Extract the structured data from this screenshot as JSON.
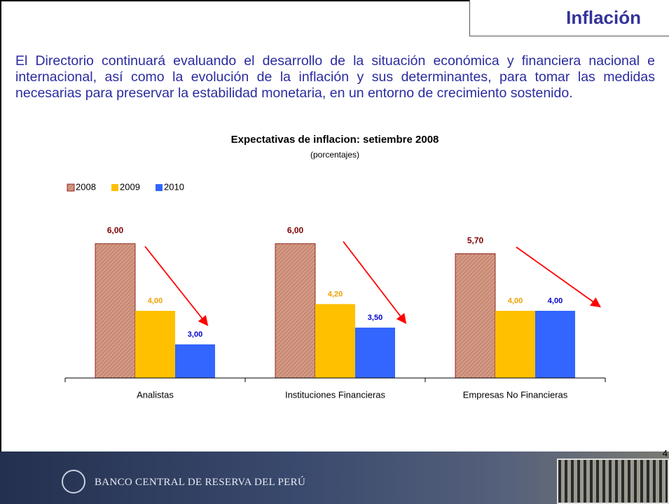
{
  "header": {
    "title": "Inflación"
  },
  "paragraph": "El Directorio continuará evaluando el desarrollo de la situación económica y financiera nacional e internacional, así como la evolución de la inflación y sus determinantes, para tomar las medidas necesarias para preservar la estabilidad monetaria, en un entorno de crecimiento sostenido.",
  "chart_data": {
    "type": "bar",
    "title": "Expectativas de inflacion: setiembre 2008",
    "subtitle": "(porcentajes)",
    "categories": [
      "Analistas",
      "Instituciones Financieras",
      "Empresas No Financieras"
    ],
    "series": [
      {
        "name": "2008",
        "color": "#d49a84",
        "label_color": "#800000",
        "values": [
          6.0,
          6.0,
          5.7
        ],
        "value_labels": [
          "6,00",
          "6,00",
          "5,70"
        ]
      },
      {
        "name": "2009",
        "color": "#ffc000",
        "label_color": "#f0a000",
        "values": [
          4.0,
          4.2,
          4.0
        ],
        "value_labels": [
          "4,00",
          "4,20",
          "4,00"
        ]
      },
      {
        "name": "2010",
        "color": "#3366ff",
        "label_color": "#0000cc",
        "values": [
          3.0,
          3.5,
          4.0
        ],
        "value_labels": [
          "3,00",
          "3,50",
          "4,00"
        ]
      }
    ],
    "ylim": [
      2,
      7
    ],
    "legend": "top-left"
  },
  "footer": {
    "bank": "BANCO CENTRAL DE RESERVA DEL PERÚ",
    "page": "4"
  }
}
